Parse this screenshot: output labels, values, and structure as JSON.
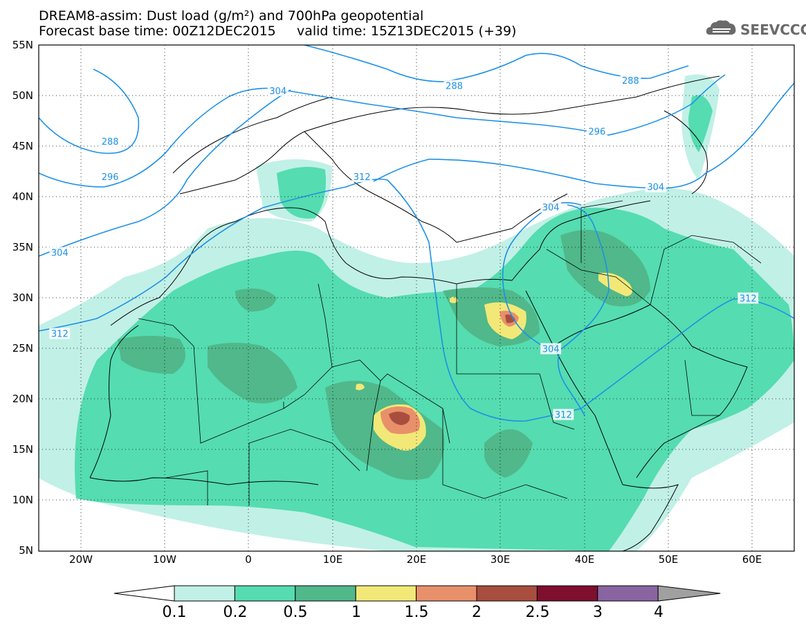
{
  "title": {
    "line1": "DREAM8-assim: Dust load (g/m²) and 700hPa geopotential",
    "line2": "Forecast base time: 00Z12DEC2015     valid time: 15Z13DEC2015 (+39)"
  },
  "logo": {
    "text": "SEEVCCC",
    "icon": "cloud-icon"
  },
  "map": {
    "lon_range": [
      -25,
      65
    ],
    "lat_range": [
      5,
      55
    ],
    "lat_labels": [
      "55N",
      "50N",
      "45N",
      "40N",
      "35N",
      "30N",
      "25N",
      "20N",
      "15N",
      "10N",
      "5N"
    ],
    "lon_labels": [
      "20W",
      "10W",
      "0",
      "10E",
      "20E",
      "30E",
      "40E",
      "50E",
      "60E"
    ],
    "contour_color": "#1e90e6",
    "contour_labels": [
      {
        "text": "304",
        "lon": -22.5,
        "lat": 34.5
      },
      {
        "text": "312",
        "lon": -22.5,
        "lat": 26.5
      },
      {
        "text": "288",
        "lon": -16.5,
        "lat": 45.5
      },
      {
        "text": "296",
        "lon": -16.5,
        "lat": 42.0
      },
      {
        "text": "304",
        "lon": 3.5,
        "lat": 50.5
      },
      {
        "text": "312",
        "lon": 13.5,
        "lat": 42.0
      },
      {
        "text": "288",
        "lon": 24.5,
        "lat": 51.0
      },
      {
        "text": "288",
        "lon": 45.5,
        "lat": 51.5
      },
      {
        "text": "296",
        "lon": 41.5,
        "lat": 46.5
      },
      {
        "text": "304",
        "lon": 48.5,
        "lat": 41.0
      },
      {
        "text": "304",
        "lon": 36.0,
        "lat": 39.0
      },
      {
        "text": "312",
        "lon": 59.5,
        "lat": 30.0
      },
      {
        "text": "304",
        "lon": 36.0,
        "lat": 25.0
      },
      {
        "text": "312",
        "lon": 37.5,
        "lat": 18.5
      }
    ]
  },
  "colorbar": {
    "labels": [
      "0.1",
      "0.2",
      "0.5",
      "1",
      "1.5",
      "2",
      "2.5",
      "3",
      "4"
    ],
    "colors": [
      "#c1f0e6",
      "#55dcb0",
      "#50b88a",
      "#f2e878",
      "#e8906a",
      "#a84e3e",
      "#7e0f2e",
      "#8a64a0",
      "#a0a0a0"
    ]
  }
}
